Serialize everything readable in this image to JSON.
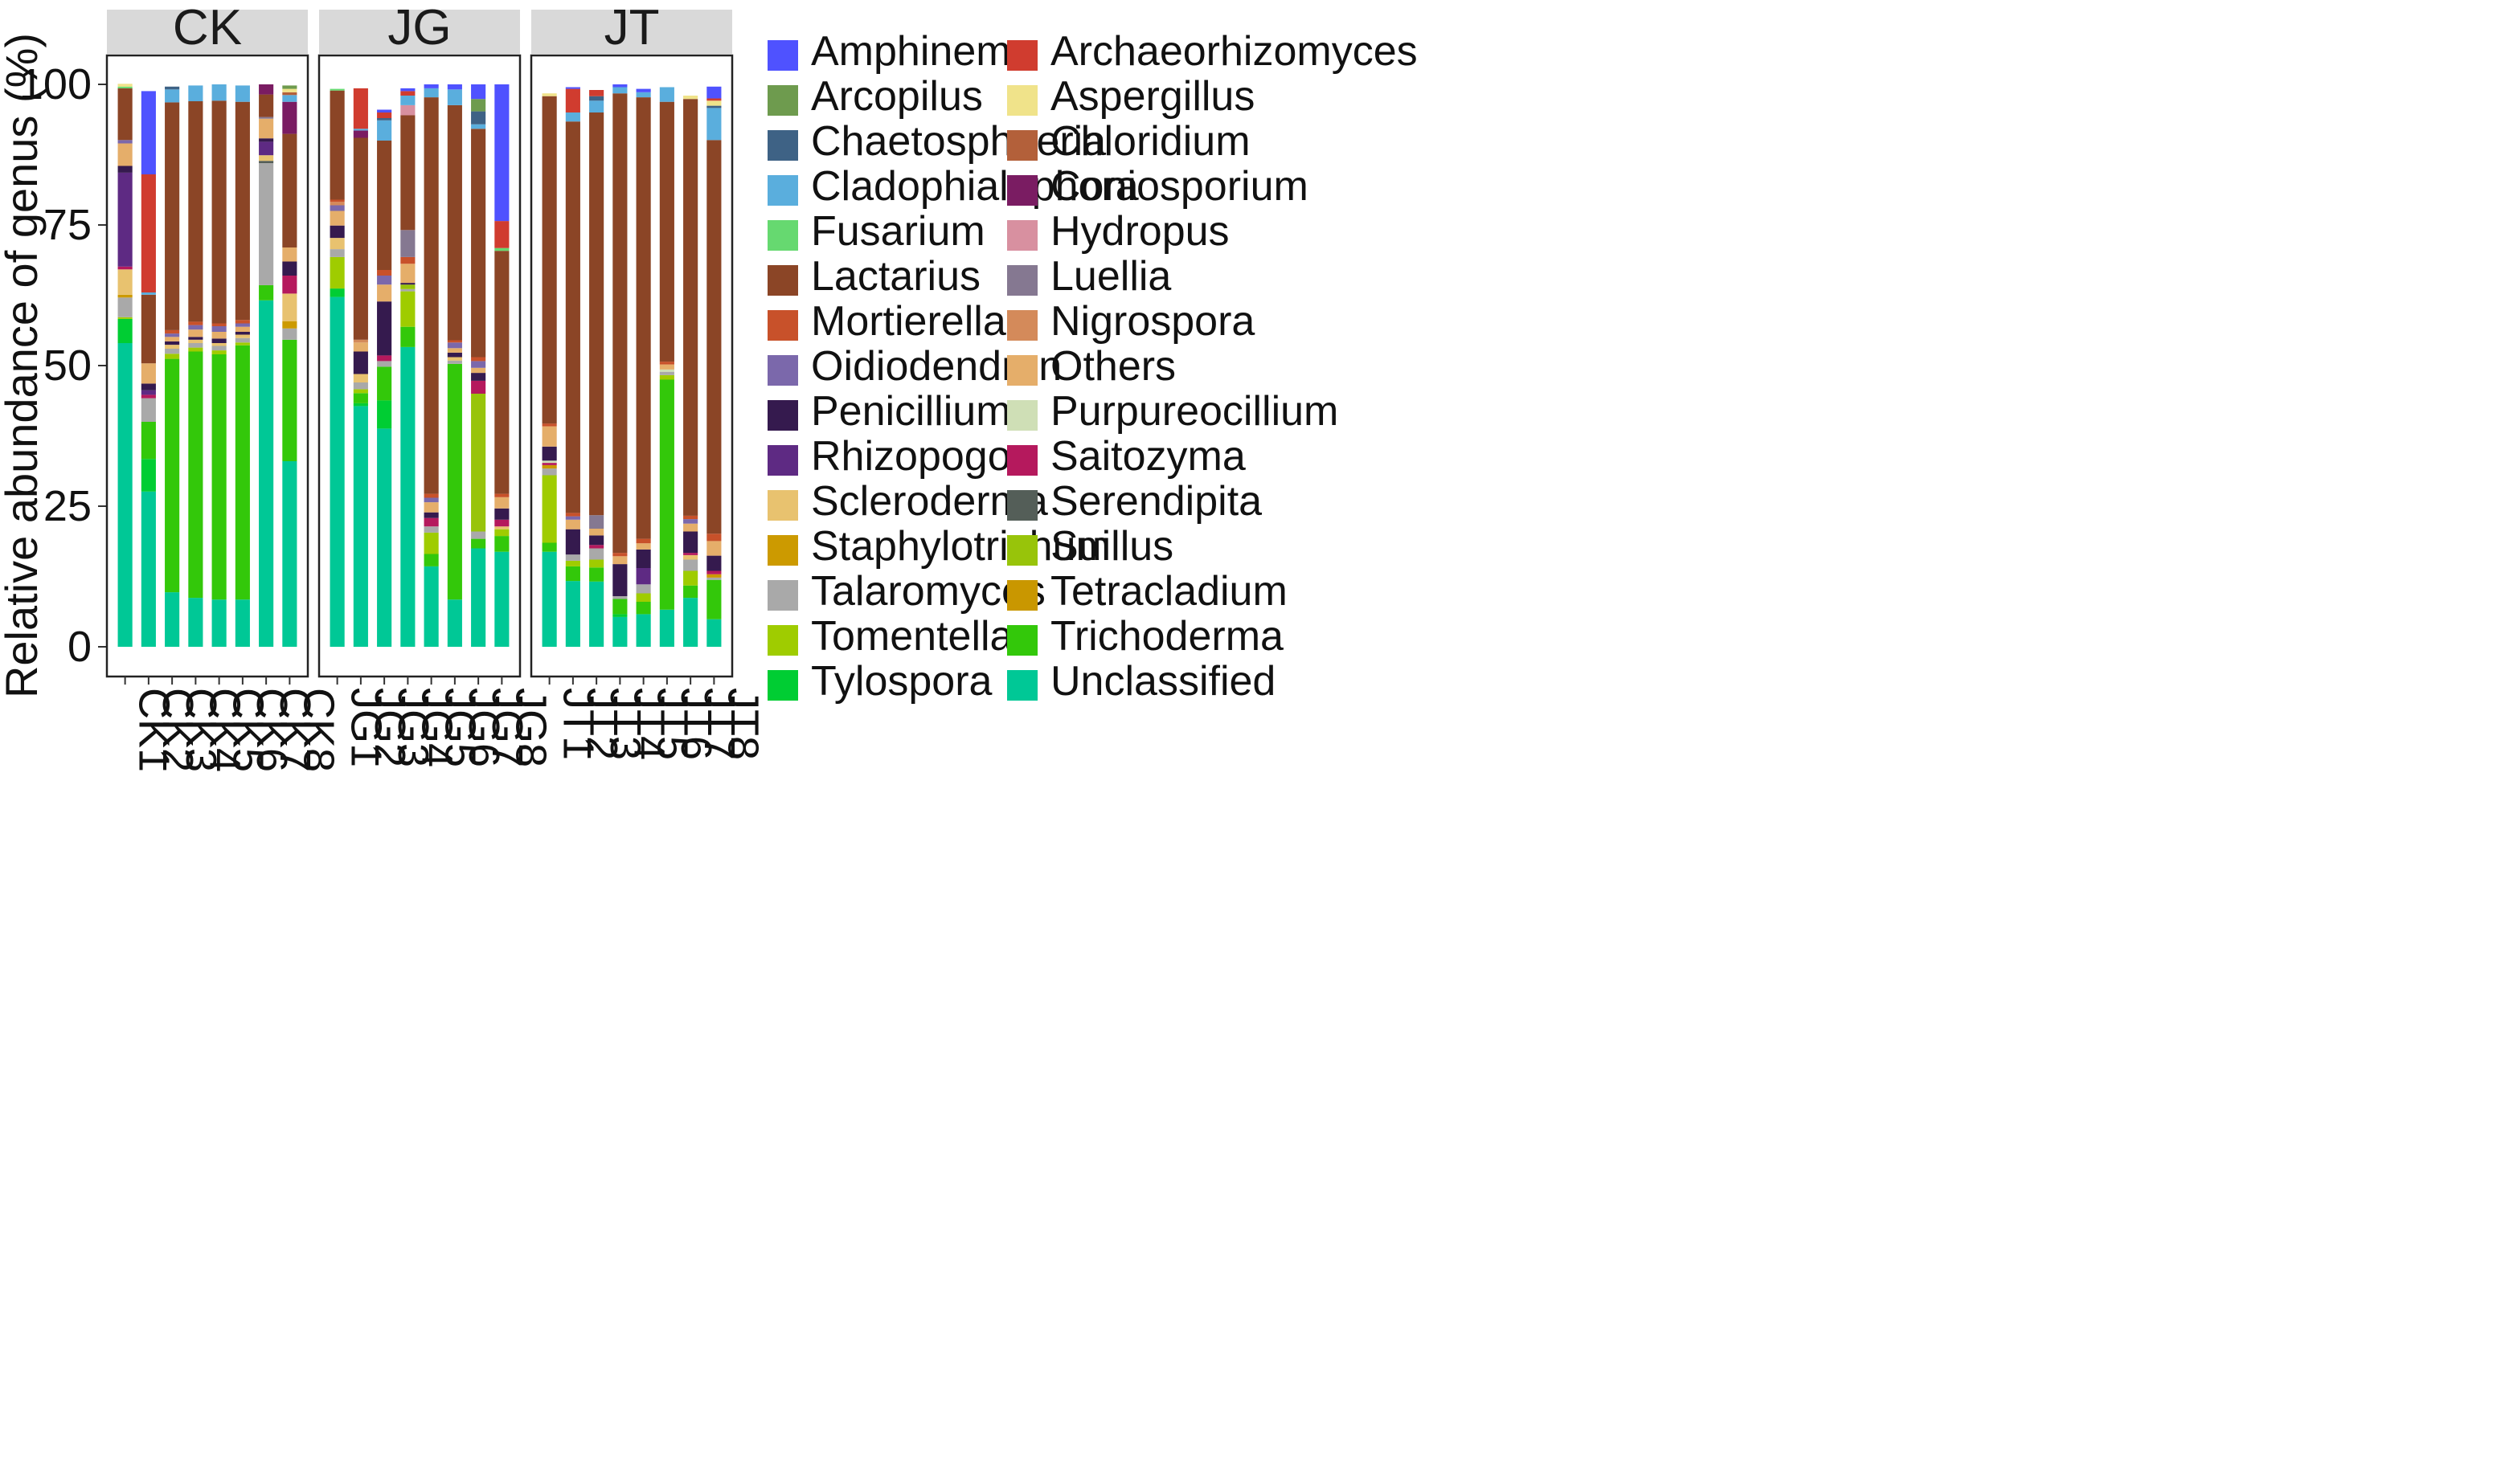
{
  "chart_data": {
    "type": "bar",
    "stacked": true,
    "ylabel": "Relative abundance of genus (%)",
    "ylim": [
      0,
      100
    ],
    "yticks": [
      0,
      25,
      50,
      75,
      100
    ],
    "legend_position": "right",
    "genera": [
      {
        "name": "Amphinema",
        "color": "#4f52ff"
      },
      {
        "name": "Archaeorhizomyces",
        "color": "#d03c2f"
      },
      {
        "name": "Arcopilus",
        "color": "#6e9b4e"
      },
      {
        "name": "Aspergillus",
        "color": "#f0e38a"
      },
      {
        "name": "Chaetosphaeria",
        "color": "#3e6285"
      },
      {
        "name": "Chloridium",
        "color": "#b3603a"
      },
      {
        "name": "Cladophialophora",
        "color": "#5aaedd"
      },
      {
        "name": "Coniosporium",
        "color": "#7a1c62"
      },
      {
        "name": "Fusarium",
        "color": "#66d970"
      },
      {
        "name": "Hydropus",
        "color": "#d890a0"
      },
      {
        "name": "Lactarius",
        "color": "#8b4526"
      },
      {
        "name": "Luellia",
        "color": "#857891"
      },
      {
        "name": "Mortierella",
        "color": "#c8512a"
      },
      {
        "name": "Nigrospora",
        "color": "#d48a5a"
      },
      {
        "name": "Oidiodendron",
        "color": "#7b68ab"
      },
      {
        "name": "Others",
        "color": "#e5ae6a"
      },
      {
        "name": "Penicillium",
        "color": "#351a4e"
      },
      {
        "name": "Purpureocillium",
        "color": "#cfdfb6"
      },
      {
        "name": "Rhizopogon",
        "color": "#5e2a83"
      },
      {
        "name": "Saitozyma",
        "color": "#b5195d"
      },
      {
        "name": "Scleroderma",
        "color": "#e8c26f"
      },
      {
        "name": "Serendipita",
        "color": "#545e58"
      },
      {
        "name": "Staphylotrichum",
        "color": "#cc9a00"
      },
      {
        "name": "Suillus",
        "color": "#98c40a"
      },
      {
        "name": "Talaromyces",
        "color": "#a9a9a9"
      },
      {
        "name": "Tetracladium",
        "color": "#c99700"
      },
      {
        "name": "Tomentella",
        "color": "#9fcc00"
      },
      {
        "name": "Trichoderma",
        "color": "#33c80a"
      },
      {
        "name": "Tylospora",
        "color": "#00cd33"
      },
      {
        "name": "Unclassified",
        "color": "#00c896"
      }
    ],
    "panels": [
      {
        "name": "CK",
        "samples": [
          {
            "name": "CK1",
            "values": {
              "Unclassified": 54,
              "Tylospora": 4.3,
              "Tomentella": 0.3,
              "Talaromyces": 3.5,
              "Scleroderma": 4.5,
              "Others": 0.5,
              "Rhizopogon": 16.7,
              "Penicillium": 1.2,
              "Oidiodendron": 0.6,
              "Saitozyma": 0.5,
              "Others_hi": 3.5,
              "Lactarius": 9.2,
              "Staphylotrichum": 0.5,
              "Aspergillus": 0.5,
              "Fusarium": 0.3
            }
          },
          {
            "name": "CK2",
            "values": {
              "Unclassified": 27.6,
              "Tylospora": 5.8,
              "Trichoderma": 6.6,
              "Talaromyces": 4.2,
              "Others": 3.6,
              "Penicillium": 1.2,
              "Saitozyma": 0.6,
              "Rhizopogon": 0.8,
              "Lactarius": 12.2,
              "Archaeorhizomyces": 21,
              "Cladophialophora": 0.4,
              "Amphinema": 14.8
            }
          },
          {
            "name": "CK3",
            "values": {
              "Unclassified": 9.7,
              "Trichoderma": 41.5,
              "Tomentella": 0.9,
              "Talaromyces": 0.9,
              "Scleroderma": 0.7,
              "Penicillium": 0.6,
              "Oidiodendron": 0.6,
              "Others": 0.8,
              "Lactarius": 40.5,
              "Cladophialophora": 2.3,
              "Chaetosphaeria": 0.5,
              "Mortierella": 0.6
            }
          },
          {
            "name": "CK4",
            "values": {
              "Unclassified": 8.7,
              "Trichoderma": 43.8,
              "Tomentella": 0.7,
              "Talaromyces": 0.8,
              "Scleroderma": 0.6,
              "Penicillium": 0.5,
              "Oidiodendron": 0.8,
              "Others": 1.3,
              "Lactarius": 39.2,
              "Cladophialophora": 2.8,
              "Mortierella": 0.6
            }
          },
          {
            "name": "CK5",
            "values": {
              "Unclassified": 8.4,
              "Trichoderma": 43.6,
              "Tomentella": 0.7,
              "Talaromyces": 0.8,
              "Scleroderma": 0.5,
              "Penicillium": 0.8,
              "Oidiodendron": 1,
              "Others": 1.2,
              "Lactarius": 39.6,
              "Cladophialophora": 2.9,
              "Mortierella": 0.5
            }
          },
          {
            "name": "CK6",
            "values": {
              "Unclassified": 8.4,
              "Trichoderma": 45.2,
              "Tomentella": 0.5,
              "Talaromyces": 0.8,
              "Scleroderma": 0.6,
              "Penicillium": 0.5,
              "Oidiodendron": 0.6,
              "Others": 0.9,
              "Lactarius": 38.8,
              "Cladophialophora": 2.9,
              "Mortierella": 0.6
            }
          },
          {
            "name": "CK7",
            "values": {
              "Unclassified": 61.6,
              "Trichoderma": 2.7,
              "Talaromyces": 21.7,
              "Coniosporium": 1.8,
              "Penicillium": 0.6,
              "Rhizopogon": 2.4,
              "Others": 3.5,
              "Scleroderma": 1,
              "Lactarius": 4,
              "Serendipita": 0.4,
              "Luellia": 0.3
            }
          },
          {
            "name": "CK8",
            "values": {
              "Unclassified": 33,
              "Trichoderma": 21.6,
              "Talaromyces": 2,
              "Staphylotrichum": 1.3,
              "Saitozyma": 3.2,
              "Penicillium": 2.5,
              "Scleroderma": 4.9,
              "Others": 2.5,
              "Lactarius": 20.2,
              "Coniosporium": 5.7,
              "Arcopilus": 0.6,
              "Cladophialophora": 1.2,
              "Aspergillus": 0.6,
              "Chloridium": 0.5
            }
          }
        ]
      },
      {
        "name": "JG",
        "samples": [
          {
            "name": "JG1",
            "values": {
              "Unclassified": 62.2,
              "Tylospora": 1.5,
              "Talaromyces": 1.4,
              "Tomentella": 5.6,
              "Scleroderma": 2,
              "Penicillium": 2.2,
              "Oidiodendron": 1,
              "Others": 2.6,
              "Nigrospora": 0.6,
              "Lactarius": 19.4,
              "Mortierella": 0.4,
              "Fusarium": 0.3
            }
          },
          {
            "name": "JG2",
            "values": {
              "Unclassified": 42.8,
              "Trichoderma": 1.8,
              "Tylospora": 0.5,
              "Tomentella": 0.7,
              "Talaromyces": 1.2,
              "Penicillium": 4,
              "Coniosporium": 1.3,
              "Scleroderma": 1.5,
              "Others": 1.6,
              "Nigrospora": 0.5,
              "Lactarius": 35.9,
              "Cladophialophora": 0.3,
              "Archaeorhizomyces": 7.2
            }
          },
          {
            "name": "JG3",
            "values": {
              "Unclassified": 38.8,
              "Trichoderma": 6,
              "Tylospora": 5,
              "Talaromyces": 1,
              "Saitozyma": 1,
              "Penicillium": 9.6,
              "Oidiodendron": 1.6,
              "Others": 3,
              "Mortierella": 1,
              "Lactarius": 23,
              "Cladophialophora": 3.6,
              "Chaetosphaeria": 0.4,
              "Archaeorhizomyces": 1,
              "Amphinema": 0.5
            }
          },
          {
            "name": "JG4",
            "values": {
              "Unclassified": 53.3,
              "Trichoderma": 3.6,
              "Tomentella": 6.3,
              "Suillus": 0.8,
              "Talaromyces": 0.4,
              "Penicillium": 0.3,
              "Others": 3.4,
              "Mortierella": 1.2,
              "Luellia": 4.8,
              "Lactarius": 20.4,
              "Hydropus": 1.8,
              "Cladophialophora": 1.7,
              "Archaeorhizomyces": 0.8,
              "Amphinema": 0.5
            }
          },
          {
            "name": "JG5",
            "values": {
              "Unclassified": 14.3,
              "Trichoderma": 2.2,
              "Tomentella": 3.8,
              "Talaromyces": 1.1,
              "Saitozyma": 1.5,
              "Penicillium": 1,
              "Oidiodendron": 0.8,
              "Others": 1.8,
              "Mortierella": 0.7,
              "Lactarius": 70.5,
              "Cladophialophora": 1.6,
              "Amphinema": 0.7
            }
          },
          {
            "name": "JG6",
            "values": {
              "Unclassified": 8.4,
              "Trichoderma": 41.9,
              "Talaromyces": 0.6,
              "Scleroderma": 0.6,
              "Penicillium": 0.8,
              "Oidiodendron": 1,
              "Others": 0.8,
              "Mortierella": 0.4,
              "Lactarius": 41.8,
              "Cladophialophora": 2.8,
              "Amphinema": 0.9
            }
          },
          {
            "name": "JG7",
            "values": {
              "Unclassified": 17.5,
              "Trichoderma": 1.7,
              "Talaromyces": 1.3,
              "Suillus": 24.5,
              "Saitozyma": 2.3,
              "Penicillium": 1.4,
              "Oidiodendron": 1.2,
              "Others": 0.9,
              "Mortierella": 0.7,
              "Lactarius": 40.6,
              "Cladophialophora": 0.8,
              "Chaetosphaeria": 2.3,
              "Arcopilus": 2.2,
              "Amphinema": 2.6
            }
          },
          {
            "name": "JG8",
            "values": {
              "Unclassified": 16.9,
              "Trichoderma": 2.8,
              "Tomentella": 1.2,
              "Scleroderma": 0.5,
              "Saitozyma": 1.2,
              "Penicillium": 2,
              "Others": 2,
              "Mortierella": 0.6,
              "Lactarius": 43.2,
              "Fusarium": 0.5,
              "Archaeorhizomyces": 4.8,
              "Amphinema": 24.3
            }
          }
        ]
      },
      {
        "name": "JT",
        "samples": [
          {
            "name": "JT1",
            "values": {
              "Unclassified": 16.9,
              "Trichoderma": 1.6,
              "Tomentella": 12,
              "Talaromyces": 1.2,
              "Staphylotrichum": 0.6,
              "Saitozyma": 0.4,
              "Penicillium": 2.5,
              "Others": 3.6,
              "Mortierella": 0.5,
              "Lactarius": 58.2,
              "Aspergillus": 0.5,
              "Purpureocillium": 0.4
            }
          },
          {
            "name": "JT2",
            "values": {
              "Unclassified": 11.7,
              "Trichoderma": 2.6,
              "Tomentella": 1,
              "Talaromyces": 1.1,
              "Penicillium": 4.5,
              "Oidiodendron": 0.6,
              "Others": 1.7,
              "Mortierella": 0.6,
              "Lactarius": 69.6,
              "Cladophialophora": 1.6,
              "Archaeorhizomyces": 4.2,
              "Amphinema": 0.3
            }
          },
          {
            "name": "JT3",
            "values": {
              "Unclassified": 11.6,
              "Trichoderma": 2.5,
              "Tomentella": 1.4,
              "Talaromyces": 2,
              "Penicillium": 1.7,
              "Saitozyma": 0.6,
              "Others": 1.2,
              "Luellia": 2.4,
              "Lactarius": 71.6,
              "Cladophialophora": 1,
              "Chaetosphaeria": 0.8,
              "Cladophialophora_b": 1.1,
              "Archaeorhizomyces": 1.1
            }
          },
          {
            "name": "JT4",
            "values": {
              "Unclassified": 5.3,
              "Trichoderma": 2.7,
              "Tylospora": 0.5,
              "Talaromyces": 0.5,
              "Penicillium": 5.7,
              "Others": 1.4,
              "Mortierella": 0.6,
              "Lactarius": 81.7,
              "Cladophialophora": 1.1,
              "Amphinema": 0.5
            }
          },
          {
            "name": "JT5",
            "values": {
              "Unclassified": 5.8,
              "Trichoderma": 2.2,
              "Tomentella": 1.5,
              "Talaromyces": 1.6,
              "Rhizopogon": 2.9,
              "Penicillium": 3.3,
              "Others": 1.1,
              "Mortierella": 0.8,
              "Lactarius": 78.5,
              "Cladophialophora": 0.9,
              "Amphinema": 0.6
            }
          },
          {
            "name": "JT6",
            "values": {
              "Unclassified": 6.6,
              "Trichoderma": 40.9,
              "Tomentella": 0.8,
              "Talaromyces": 0.6,
              "Others": 0.9,
              "Mortierella": 0.5,
              "Lactarius": 46.2,
              "Cladophialophora": 2.6,
              "Purpureocillium": 0.4
            }
          },
          {
            "name": "JT7",
            "values": {
              "Unclassified": 8.7,
              "Trichoderma": 2.2,
              "Tomentella": 2.6,
              "Talaromyces": 2,
              "Scleroderma": 0.8,
              "Penicillium": 3.8,
              "Saitozyma": 0.4,
              "Oidiodendron": 0.8,
              "Others": 1.4,
              "Mortierella": 0.6,
              "Lactarius": 74.1,
              "Aspergillus": 0.6
            }
          },
          {
            "name": "JT8",
            "values": {
              "Unclassified": 4.9,
              "Trichoderma": 7,
              "Staphylotrichum": 0.6,
              "Saitozyma": 0.6,
              "Talaromyces": 0.4,
              "Penicillium": 2.7,
              "Others": 2.6,
              "Mortierella": 0.7,
              "Lactarius": 70,
              "Chaetosphaeria": 0.4,
              "Cladophialophora": 5.7,
              "Aspergillus": 0.9,
              "Mortierella_b": 0.6,
              "Archaeorhizomyces": 0.4,
              "Amphinema": 2.1
            }
          }
        ]
      }
    ]
  }
}
